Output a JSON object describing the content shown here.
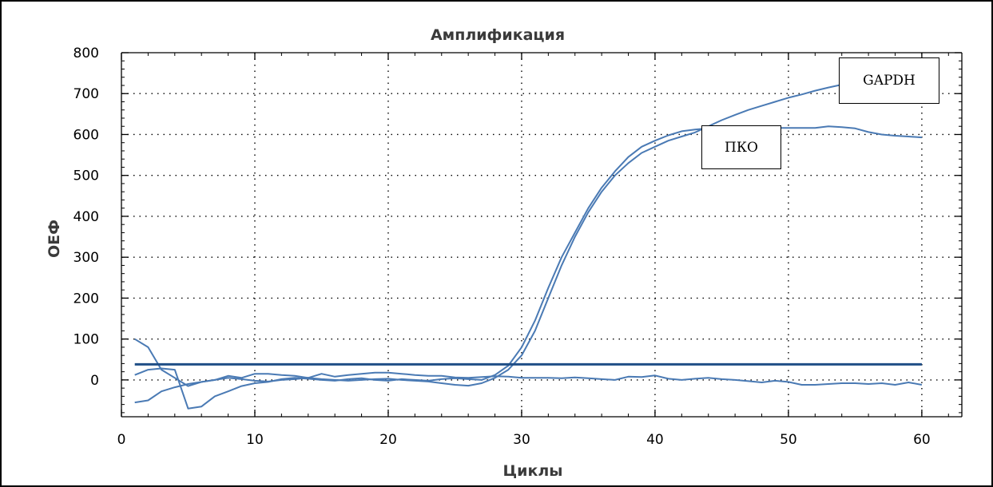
{
  "chart_data": {
    "type": "line",
    "title": "Амплификация",
    "xlabel": "Циклы",
    "ylabel": "ОЕФ",
    "xlim": [
      0,
      63
    ],
    "ylim": [
      -90,
      800
    ],
    "x_ticks": [
      0,
      10,
      20,
      30,
      40,
      50,
      60
    ],
    "y_ticks": [
      0,
      100,
      200,
      300,
      400,
      500,
      600,
      700,
      800
    ],
    "grid": true,
    "threshold": 38,
    "series": [
      {
        "name": "GAPDH",
        "x": [
          1,
          2,
          3,
          4,
          5,
          6,
          7,
          8,
          9,
          10,
          11,
          12,
          13,
          14,
          15,
          16,
          17,
          18,
          19,
          20,
          21,
          22,
          23,
          24,
          25,
          26,
          27,
          28,
          29,
          30,
          31,
          32,
          33,
          34,
          35,
          36,
          37,
          38,
          39,
          40,
          41,
          42,
          43,
          44,
          45,
          46,
          47,
          48,
          49,
          50,
          51,
          52,
          53,
          54,
          55,
          56,
          57,
          58,
          59,
          60
        ],
        "y": [
          -55,
          -50,
          -28,
          -18,
          -10,
          -5,
          0,
          5,
          2,
          -2,
          -4,
          0,
          2,
          5,
          2,
          0,
          -2,
          0,
          2,
          3,
          0,
          -2,
          -4,
          -8,
          -12,
          -14,
          -8,
          5,
          25,
          60,
          120,
          200,
          280,
          350,
          410,
          460,
          500,
          530,
          555,
          570,
          585,
          595,
          605,
          620,
          635,
          648,
          660,
          670,
          680,
          690,
          698,
          707,
          715,
          722,
          728,
          734,
          738,
          742,
          745,
          748
        ]
      },
      {
        "name": "ПКО",
        "x": [
          1,
          2,
          3,
          4,
          5,
          6,
          7,
          8,
          9,
          10,
          11,
          12,
          13,
          14,
          15,
          16,
          17,
          18,
          19,
          20,
          21,
          22,
          23,
          24,
          25,
          26,
          27,
          28,
          29,
          30,
          31,
          32,
          33,
          34,
          35,
          36,
          37,
          38,
          39,
          40,
          41,
          42,
          43,
          44,
          45,
          46,
          47,
          48,
          49,
          50,
          51,
          52,
          53,
          54,
          55,
          56,
          57,
          58,
          59,
          60
        ],
        "y": [
          12,
          25,
          28,
          25,
          -70,
          -65,
          -40,
          -28,
          -15,
          -8,
          -5,
          2,
          5,
          3,
          0,
          -2,
          2,
          4,
          0,
          -2,
          2,
          0,
          -2,
          2,
          4,
          2,
          0,
          12,
          35,
          80,
          145,
          225,
          300,
          360,
          420,
          470,
          510,
          545,
          570,
          585,
          598,
          608,
          612,
          615,
          615,
          615,
          615,
          616,
          616,
          616,
          616,
          616,
          620,
          618,
          615,
          606,
          600,
          597,
          595,
          593
        ]
      },
      {
        "name": "",
        "x": [
          1,
          2,
          3,
          4,
          5,
          6,
          7,
          8,
          9,
          10,
          11,
          12,
          13,
          14,
          15,
          16,
          17,
          18,
          19,
          20,
          21,
          22,
          23,
          24,
          25,
          26,
          27,
          28,
          29,
          30,
          31,
          32,
          33,
          34,
          35,
          36,
          37,
          38,
          39,
          40,
          41,
          42,
          43,
          44,
          45,
          46,
          47,
          48,
          49,
          50,
          51,
          52,
          53,
          54,
          55,
          56,
          57,
          58,
          59,
          60
        ],
        "y": [
          100,
          80,
          25,
          5,
          -15,
          -5,
          0,
          10,
          5,
          15,
          15,
          12,
          10,
          5,
          15,
          8,
          12,
          15,
          18,
          18,
          15,
          12,
          10,
          10,
          6,
          5,
          7,
          9,
          8,
          5,
          5,
          5,
          4,
          6,
          4,
          2,
          0,
          8,
          7,
          11,
          3,
          0,
          3,
          5,
          2,
          0,
          -3,
          -6,
          -2,
          -5,
          -12,
          -12,
          -10,
          -8,
          -8,
          -10,
          -8,
          -12,
          -6,
          -12
        ]
      }
    ]
  },
  "callouts": {
    "gapdh": "GAPDH",
    "pko": "ПКО"
  },
  "colors": {
    "series": "#4a7ab4",
    "threshold": "#1f4e86",
    "grid": "#000000",
    "axis": "#000000"
  }
}
